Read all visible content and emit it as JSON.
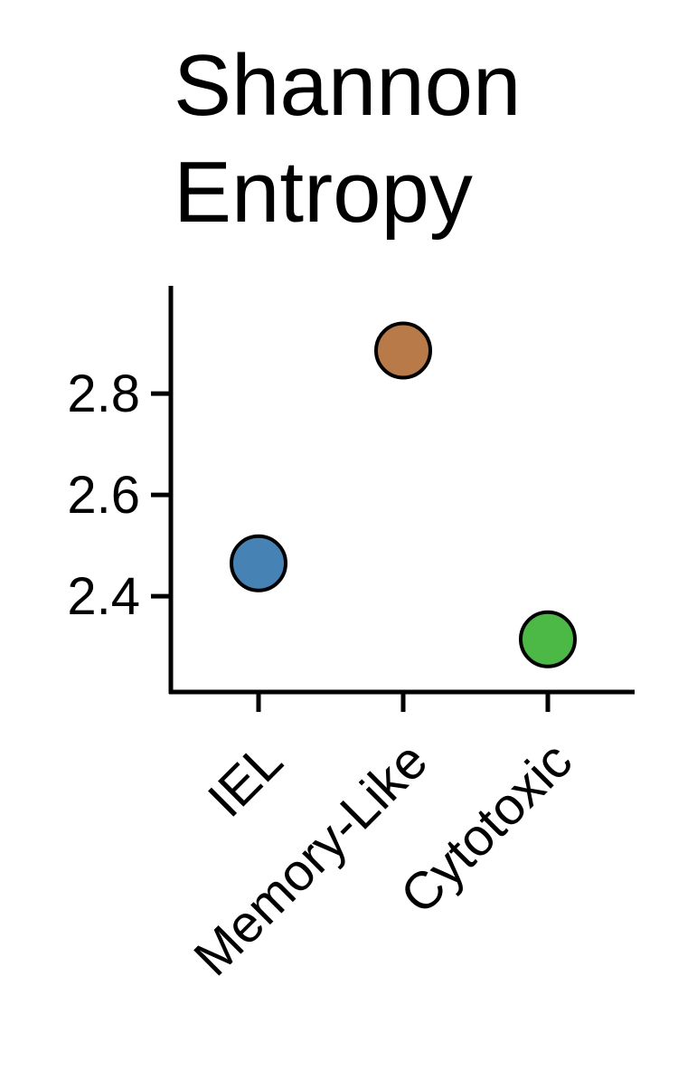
{
  "chart_data": {
    "type": "scatter",
    "title_lines": [
      "Shannon",
      "Entropy"
    ],
    "xlabel": "",
    "ylabel": "",
    "categories": [
      "IEL",
      "Memory-Like",
      "Cytotoxic"
    ],
    "values": [
      2.465,
      2.885,
      2.315
    ],
    "point_colors": [
      "#4682b4",
      "#b87a48",
      "#4cb846"
    ],
    "point_edge_color": "#000000",
    "yticks": [
      2.4,
      2.6,
      2.8
    ],
    "ytick_labels": [
      "2.4",
      "2.6",
      "2.8"
    ],
    "ylim": [
      2.21,
      3.0
    ],
    "grid": false,
    "legend": false
  }
}
